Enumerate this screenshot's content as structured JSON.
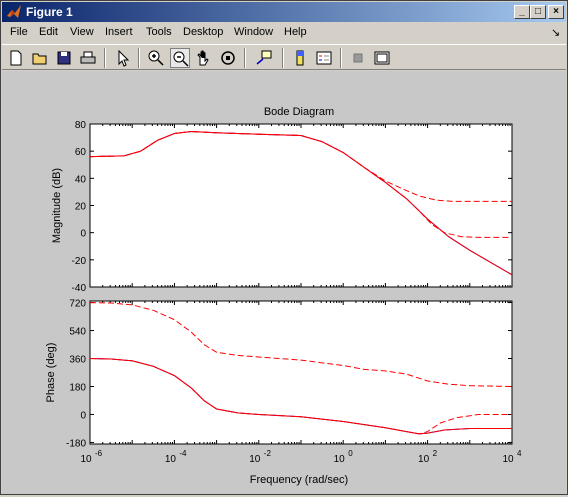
{
  "window": {
    "title": "Figure 1"
  },
  "menu": [
    "File",
    "Edit",
    "View",
    "Insert",
    "Tools",
    "Desktop",
    "Window",
    "Help"
  ],
  "toolbar": {
    "buttons": [
      "new-figure",
      "open-file",
      "save",
      "print",
      "edit-plot",
      "zoom-in",
      "zoom-out",
      "pan",
      "rotate-3d",
      "data-cursor",
      "insert-colorbar",
      "insert-legend",
      "hide-plot-tools",
      "show-plot-tools"
    ]
  },
  "chart_data": {
    "type": "line",
    "title": "Bode Diagram",
    "xlabel": "Frequency  (rad/sec)",
    "xscale": "log",
    "xlim": [
      1e-06,
      10000.0
    ],
    "xticks": [
      {
        "base": "10",
        "exp": "-6"
      },
      {
        "base": "10",
        "exp": "-4"
      },
      {
        "base": "10",
        "exp": "-2"
      },
      {
        "base": "10",
        "exp": "0"
      },
      {
        "base": "10",
        "exp": "2"
      },
      {
        "base": "10",
        "exp": "4"
      }
    ],
    "panels": [
      {
        "ylabel": "Magnitude (dB)",
        "ylim": [
          -40,
          80
        ],
        "yticks": [
          "-40",
          "-20",
          "0",
          "20",
          "40",
          "60",
          "80"
        ],
        "yvals": [
          -40,
          -20,
          0,
          20,
          40,
          60,
          80
        ],
        "series": [
          {
            "color": "#0000ff",
            "style": "solid",
            "points": [
              [
                -6,
                56
              ],
              [
                -5.2,
                56.5
              ],
              [
                -4.8,
                60
              ],
              [
                -4.4,
                68
              ],
              [
                -4,
                73
              ],
              [
                -3.6,
                74.5
              ],
              [
                -3,
                73.5
              ],
              [
                -2,
                72.5
              ],
              [
                -1,
                71.5
              ],
              [
                -0.5,
                67
              ],
              [
                0,
                59
              ],
              [
                0.5,
                48
              ],
              [
                1,
                37
              ],
              [
                1.5,
                25
              ],
              [
                2,
                10
              ],
              [
                2.5,
                -3
              ],
              [
                3,
                -13
              ],
              [
                3.5,
                -22
              ],
              [
                4,
                -31
              ]
            ]
          },
          {
            "color": "#ff0000",
            "style": "solid",
            "points": [
              [
                -6,
                56
              ],
              [
                -5.2,
                56.5
              ],
              [
                -4.8,
                60
              ],
              [
                -4.4,
                68
              ],
              [
                -4,
                73
              ],
              [
                -3.6,
                74.5
              ],
              [
                -3,
                73.5
              ],
              [
                -2,
                72.5
              ],
              [
                -1,
                71.5
              ],
              [
                -0.5,
                67
              ],
              [
                0,
                59
              ],
              [
                0.5,
                48
              ],
              [
                1,
                37
              ],
              [
                1.5,
                25
              ],
              [
                2,
                10
              ],
              [
                2.5,
                -3
              ],
              [
                3,
                -13
              ],
              [
                3.5,
                -22
              ],
              [
                4,
                -31
              ]
            ]
          },
          {
            "color": "#ff0000",
            "style": "dashed",
            "points": [
              [
                -6,
                56
              ],
              [
                -5.2,
                56.5
              ],
              [
                -4.8,
                60
              ],
              [
                -4.4,
                68
              ],
              [
                -4,
                73
              ],
              [
                -3.6,
                74.5
              ],
              [
                -3,
                73.5
              ],
              [
                -2,
                72.5
              ],
              [
                -1,
                71.5
              ],
              [
                -0.5,
                67
              ],
              [
                0,
                59
              ],
              [
                0.5,
                48
              ],
              [
                1,
                38
              ],
              [
                1.5,
                31
              ],
              [
                1.8,
                27
              ],
              [
                2.2,
                24
              ],
              [
                2.6,
                23
              ],
              [
                4,
                23
              ]
            ]
          },
          {
            "color": "#ff0000",
            "style": "dashed",
            "points": [
              [
                -6,
                56
              ],
              [
                -5.2,
                56.5
              ],
              [
                -4.8,
                60
              ],
              [
                -4.4,
                68
              ],
              [
                -4,
                73
              ],
              [
                -3.6,
                74.5
              ],
              [
                -3,
                73.5
              ],
              [
                -2,
                72.5
              ],
              [
                -1,
                71.5
              ],
              [
                -0.5,
                67
              ],
              [
                0,
                59
              ],
              [
                0.5,
                48
              ],
              [
                1,
                37
              ],
              [
                1.5,
                25
              ],
              [
                1.8,
                16
              ],
              [
                2.1,
                6
              ],
              [
                2.4,
                0
              ],
              [
                2.8,
                -3
              ],
              [
                3.2,
                -3.5
              ],
              [
                4,
                -3.5
              ]
            ]
          }
        ]
      },
      {
        "ylabel": "Phase (deg)",
        "ylim": [
          -190,
          730
        ],
        "yticks": [
          "-180",
          "0",
          "180",
          "360",
          "540",
          "720"
        ],
        "yvals": [
          -180,
          0,
          180,
          360,
          540,
          720
        ],
        "series": [
          {
            "color": "#0000ff",
            "style": "solid",
            "points": [
              [
                -6,
                360
              ],
              [
                -5.5,
                357
              ],
              [
                -5,
                345
              ],
              [
                -4.5,
                310
              ],
              [
                -4,
                250
              ],
              [
                -3.6,
                170
              ],
              [
                -3.3,
                90
              ],
              [
                -3,
                35
              ],
              [
                -2.5,
                10
              ],
              [
                -2,
                0
              ],
              [
                -1,
                -15
              ],
              [
                0,
                -45
              ],
              [
                0.5,
                -65
              ],
              [
                1,
                -85
              ],
              [
                1.5,
                -110
              ],
              [
                1.8,
                -125
              ],
              [
                2,
                -120
              ],
              [
                2.4,
                -100
              ],
              [
                3,
                -90
              ],
              [
                4,
                -90
              ]
            ]
          },
          {
            "color": "#ff0000",
            "style": "solid",
            "points": [
              [
                -6,
                360
              ],
              [
                -5.5,
                357
              ],
              [
                -5,
                345
              ],
              [
                -4.5,
                310
              ],
              [
                -4,
                250
              ],
              [
                -3.6,
                170
              ],
              [
                -3.3,
                90
              ],
              [
                -3,
                35
              ],
              [
                -2.5,
                10
              ],
              [
                -2,
                0
              ],
              [
                -1,
                -15
              ],
              [
                0,
                -45
              ],
              [
                0.5,
                -65
              ],
              [
                1,
                -85
              ],
              [
                1.5,
                -110
              ],
              [
                1.8,
                -125
              ],
              [
                2,
                -120
              ],
              [
                2.4,
                -100
              ],
              [
                3,
                -90
              ],
              [
                4,
                -90
              ]
            ]
          },
          {
            "color": "#ff0000",
            "style": "dashed",
            "points": [
              [
                -6,
                720
              ],
              [
                -5.5,
                717
              ],
              [
                -5,
                705
              ],
              [
                -4.5,
                670
              ],
              [
                -4,
                610
              ],
              [
                -3.6,
                530
              ],
              [
                -3.3,
                450
              ],
              [
                -3,
                400
              ],
              [
                -2.5,
                380
              ],
              [
                -2,
                370
              ],
              [
                -1,
                350
              ],
              [
                0,
                315
              ],
              [
                0.5,
                290
              ],
              [
                1,
                280
              ],
              [
                1.5,
                260
              ],
              [
                2,
                215
              ],
              [
                2.5,
                195
              ],
              [
                3,
                185
              ],
              [
                4,
                180
              ]
            ]
          },
          {
            "color": "#ff0000",
            "style": "dashed",
            "points": [
              [
                -6,
                360
              ],
              [
                -5.5,
                357
              ],
              [
                -5,
                345
              ],
              [
                -4.5,
                310
              ],
              [
                -4,
                250
              ],
              [
                -3.6,
                170
              ],
              [
                -3.3,
                90
              ],
              [
                -3,
                35
              ],
              [
                -2.5,
                10
              ],
              [
                -2,
                0
              ],
              [
                -1,
                -15
              ],
              [
                0,
                -45
              ],
              [
                0.5,
                -65
              ],
              [
                1,
                -85
              ],
              [
                1.5,
                -110
              ],
              [
                1.8,
                -125
              ],
              [
                2,
                -110
              ],
              [
                2.3,
                -55
              ],
              [
                2.7,
                -20
              ],
              [
                3.2,
                0
              ],
              [
                4,
                0
              ]
            ]
          }
        ]
      }
    ]
  }
}
